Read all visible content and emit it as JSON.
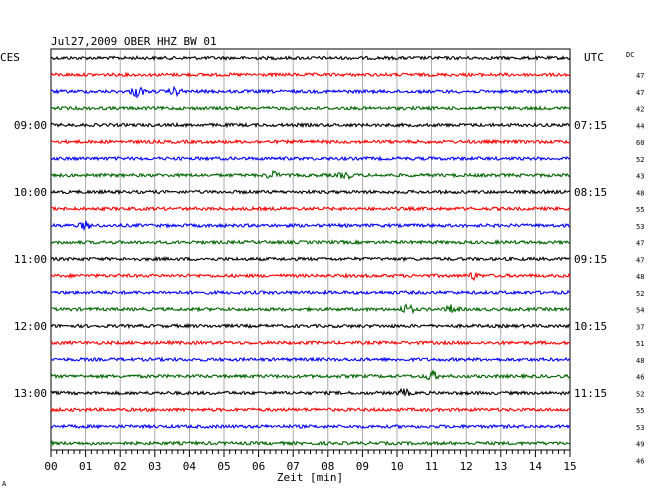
{
  "chart_data": {
    "type": "line",
    "title": "Jul27,2009   OBER HHZ BW 01",
    "xlabel": "Zeit [min]",
    "x_ticks": [
      "00",
      "01",
      "02",
      "03",
      "04",
      "05",
      "06",
      "07",
      "08",
      "09",
      "10",
      "11",
      "12",
      "13",
      "14",
      "15"
    ],
    "xlim": [
      0,
      15
    ],
    "left_axis_label": "CES",
    "right_axis_label": "UTC",
    "dc_label": "DC",
    "minutes_per_trace": 15,
    "left_time_labels": [
      {
        "trace": 4,
        "text": "09:00"
      },
      {
        "trace": 8,
        "text": "10:00"
      },
      {
        "trace": 12,
        "text": "11:00"
      },
      {
        "trace": 16,
        "text": "12:00"
      },
      {
        "trace": 20,
        "text": "13:00"
      }
    ],
    "right_time_labels": [
      {
        "trace": 4,
        "text": "07:15"
      },
      {
        "trace": 8,
        "text": "08:15"
      },
      {
        "trace": 12,
        "text": "09:15"
      },
      {
        "trace": 16,
        "text": "10:15"
      },
      {
        "trace": 20,
        "text": "11:15"
      }
    ],
    "dc_values": [
      "47",
      "47",
      "42",
      "44",
      "60",
      "52",
      "43",
      "48",
      "55",
      "53",
      "47",
      "47",
      "48",
      "52",
      "54",
      "37",
      "51",
      "48",
      "46",
      "52",
      "55",
      "53",
      "49",
      "46"
    ],
    "trace_colors": [
      "#000000",
      "#ff0000",
      "#0000ff",
      "#006600"
    ],
    "events": [
      {
        "trace": 2,
        "minute": 2.5,
        "amp": 2.5
      },
      {
        "trace": 2,
        "minute": 3.6,
        "amp": 1.6
      },
      {
        "trace": 7,
        "minute": 6.4,
        "amp": 1.8
      },
      {
        "trace": 7,
        "minute": 8.5,
        "amp": 1.6
      },
      {
        "trace": 10,
        "minute": 1.0,
        "amp": 1.6
      },
      {
        "trace": 13,
        "minute": 12.2,
        "amp": 1.5
      },
      {
        "trace": 15,
        "minute": 10.3,
        "amp": 2.2
      },
      {
        "trace": 15,
        "minute": 11.6,
        "amp": 1.8
      },
      {
        "trace": 19,
        "minute": 11.0,
        "amp": 2.4
      },
      {
        "trace": 20,
        "minute": 10.2,
        "amp": 1.6
      }
    ],
    "grid": true
  },
  "footer_mark": "A"
}
